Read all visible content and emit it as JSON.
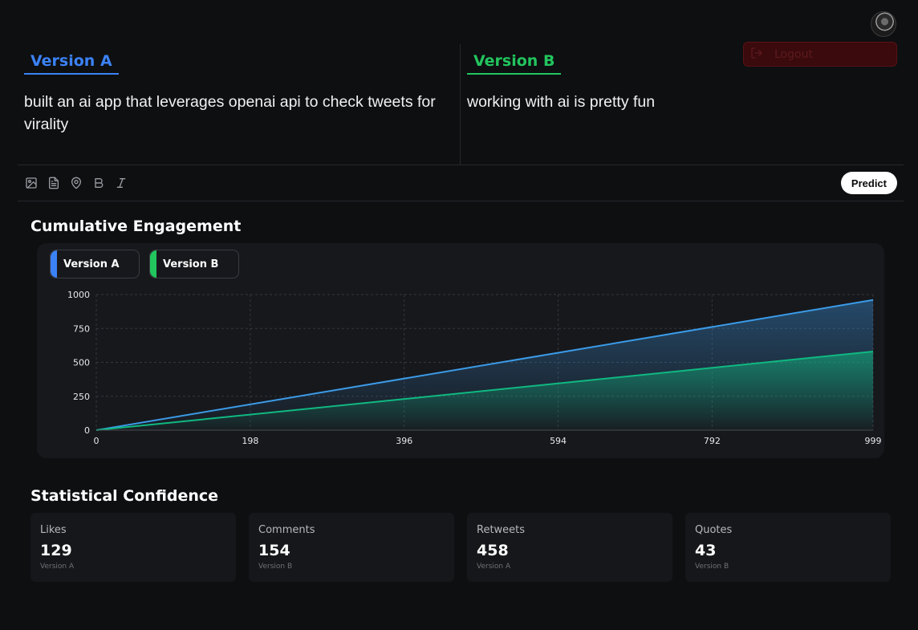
{
  "user": {
    "logout_label": "Logout"
  },
  "composer": {
    "version_a": {
      "tab_label": "Version A",
      "text": "built an ai app that leverages openai api to check tweets for virality",
      "color": "#3b82f6"
    },
    "version_b": {
      "tab_label": "Version B",
      "text": "working with ai is pretty fun",
      "color": "#22c55e"
    },
    "toolbar": {
      "icons": [
        "image-icon",
        "file-icon",
        "location-icon",
        "bold-icon",
        "italic-icon"
      ],
      "predict_label": "Predict"
    }
  },
  "engagement": {
    "title": "Cumulative Engagement",
    "legend": [
      {
        "label": "Version A",
        "color": "#3b82f6"
      },
      {
        "label": "Version B",
        "color": "#22c55e"
      }
    ]
  },
  "chart_data": {
    "type": "area",
    "x_ticks": [
      0,
      198,
      396,
      594,
      792,
      999
    ],
    "y_ticks": [
      0,
      250,
      500,
      750,
      1000
    ],
    "xlim": [
      0,
      999
    ],
    "ylim": [
      0,
      1000
    ],
    "grid": true,
    "legend_placement": "top-left",
    "series": [
      {
        "name": "Version A",
        "color": "#3b9be8",
        "x": [
          0,
          999
        ],
        "y": [
          0,
          960
        ]
      },
      {
        "name": "Version B",
        "color": "#10b981",
        "x": [
          0,
          999
        ],
        "y": [
          0,
          580
        ]
      }
    ]
  },
  "confidence": {
    "title": "Statistical Confidence",
    "cards": [
      {
        "label": "Likes",
        "value": "129",
        "winner": "Version A"
      },
      {
        "label": "Comments",
        "value": "154",
        "winner": "Version B"
      },
      {
        "label": "Retweets",
        "value": "458",
        "winner": "Version A"
      },
      {
        "label": "Quotes",
        "value": "43",
        "winner": "Version B"
      }
    ]
  }
}
